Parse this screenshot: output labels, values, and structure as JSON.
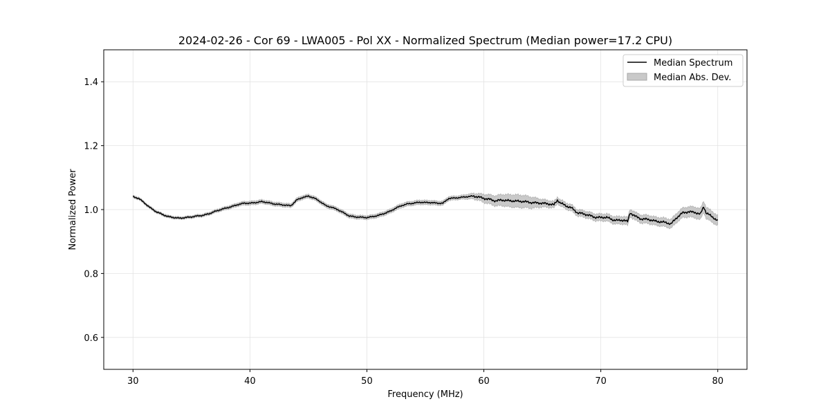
{
  "chart_data": {
    "type": "line",
    "title": "2024-02-26 - Cor 69 - LWA005 - Pol XX - Normalized Spectrum (Median power=17.2 CPU)",
    "xlabel": "Frequency (MHz)",
    "ylabel": "Normalized Power",
    "xlim": [
      27.5,
      82.5
    ],
    "ylim": [
      0.5,
      1.5
    ],
    "xticks": [
      30,
      40,
      50,
      60,
      70,
      80
    ],
    "yticks": [
      0.6,
      0.8,
      1.0,
      1.2,
      1.4
    ],
    "xtick_labels": [
      "30",
      "40",
      "50",
      "60",
      "70",
      "80"
    ],
    "ytick_labels": [
      "0.6",
      "0.8",
      "1.0",
      "1.2",
      "1.4"
    ],
    "grid": true,
    "legend_position": "top-right",
    "legend": [
      "Median Spectrum",
      "Median Abs. Dev."
    ],
    "series": [
      {
        "name": "Median Spectrum",
        "color": "#000000",
        "x": [
          30,
          30.5,
          31,
          31.5,
          32,
          32.5,
          33,
          33.5,
          34,
          34.5,
          35,
          35.5,
          36,
          36.5,
          37,
          37.5,
          38,
          38.5,
          39,
          39.5,
          40,
          40.5,
          41,
          41.5,
          42,
          42.5,
          43,
          43.5,
          44,
          44.5,
          45,
          45.5,
          46,
          46.5,
          47,
          47.5,
          48,
          48.5,
          49,
          49.5,
          50,
          50.5,
          51,
          51.5,
          52,
          52.5,
          53,
          53.5,
          54,
          54.5,
          55,
          55.5,
          56,
          56.5,
          57,
          57.5,
          58,
          58.5,
          59,
          59.5,
          60,
          60.5,
          61,
          61.5,
          62,
          62.5,
          63,
          63.5,
          64,
          64.5,
          65,
          65.5,
          66,
          66.3,
          66.5,
          67,
          67.5,
          68,
          68.5,
          69,
          69.5,
          70,
          70.5,
          71,
          71.5,
          72,
          72.3,
          72.5,
          73,
          73.5,
          74,
          74.5,
          75,
          75.5,
          76,
          76.5,
          77,
          77.5,
          78,
          78.5,
          78.8,
          79,
          79.5,
          80
        ],
        "values": [
          1.04,
          1.035,
          1.02,
          1.005,
          0.993,
          0.985,
          0.978,
          0.975,
          0.973,
          0.975,
          0.977,
          0.98,
          0.982,
          0.987,
          0.994,
          1.0,
          1.005,
          1.01,
          1.016,
          1.02,
          1.02,
          1.022,
          1.025,
          1.022,
          1.018,
          1.016,
          1.014,
          1.012,
          1.03,
          1.038,
          1.042,
          1.036,
          1.025,
          1.012,
          1.007,
          1.0,
          0.99,
          0.98,
          0.977,
          0.976,
          0.975,
          0.978,
          0.982,
          0.988,
          0.995,
          1.005,
          1.013,
          1.018,
          1.02,
          1.023,
          1.022,
          1.022,
          1.02,
          1.02,
          1.035,
          1.036,
          1.038,
          1.04,
          1.042,
          1.04,
          1.035,
          1.032,
          1.027,
          1.03,
          1.028,
          1.027,
          1.026,
          1.025,
          1.022,
          1.021,
          1.02,
          1.018,
          1.015,
          1.03,
          1.022,
          1.012,
          1.005,
          0.99,
          0.987,
          0.982,
          0.976,
          0.975,
          0.976,
          0.968,
          0.966,
          0.967,
          0.962,
          0.99,
          0.978,
          0.97,
          0.97,
          0.965,
          0.962,
          0.96,
          0.955,
          0.975,
          0.99,
          0.993,
          0.992,
          0.985,
          1.01,
          0.99,
          0.978,
          0.965
        ]
      },
      {
        "name": "Median Abs. Dev.",
        "color": "#bfbfbf",
        "x": [
          30,
          35,
          40,
          45,
          50,
          55,
          58,
          59.5,
          60,
          61,
          62,
          63,
          64,
          65,
          66,
          67,
          68,
          70,
          72,
          74,
          75,
          76,
          77,
          78,
          79,
          80
        ],
        "spread": [
          0.004,
          0.004,
          0.006,
          0.006,
          0.006,
          0.007,
          0.006,
          0.01,
          0.013,
          0.016,
          0.019,
          0.02,
          0.018,
          0.012,
          0.01,
          0.01,
          0.01,
          0.011,
          0.012,
          0.013,
          0.013,
          0.014,
          0.015,
          0.017,
          0.018,
          0.016
        ]
      }
    ]
  }
}
